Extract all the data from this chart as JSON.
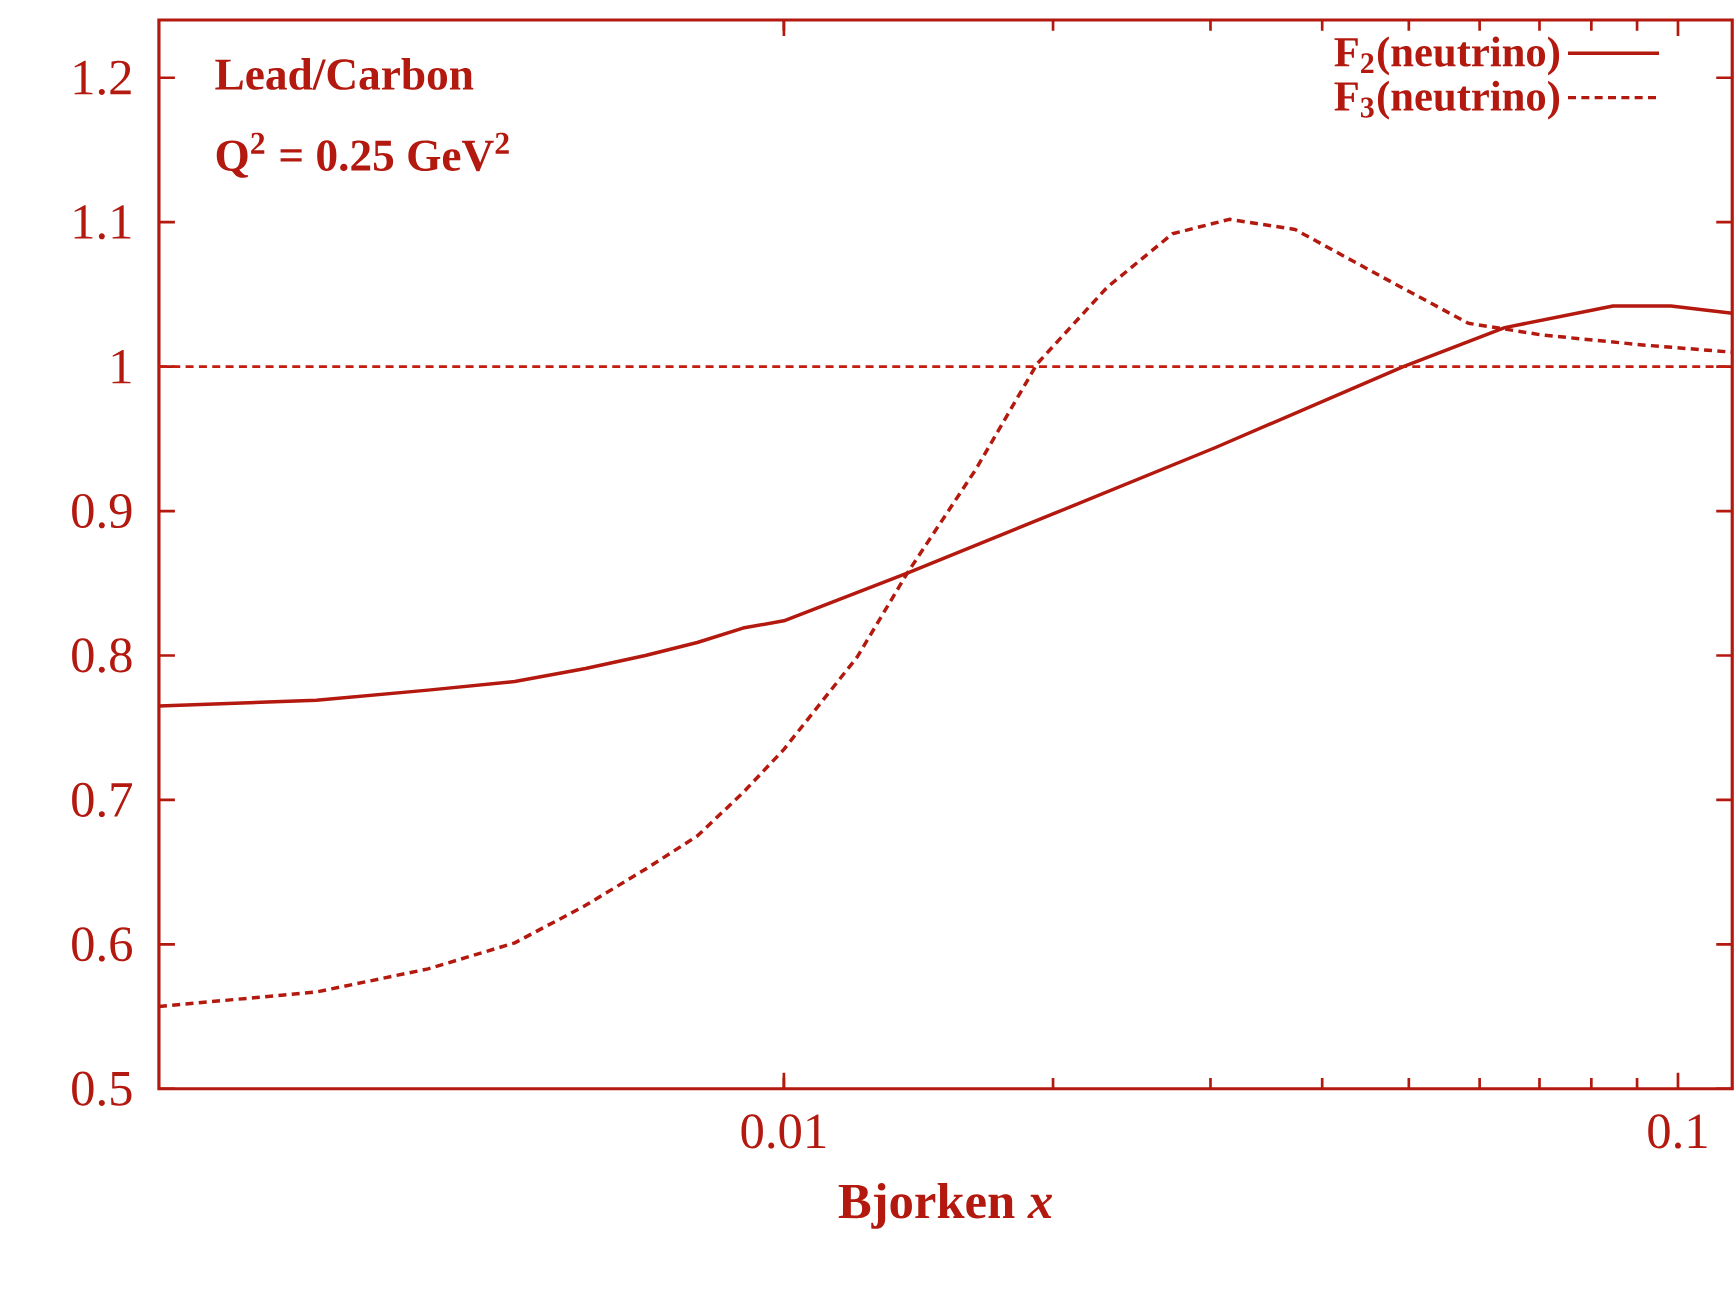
{
  "chart_data": {
    "type": "line",
    "xlabel": "Bjorken *x*",
    "log": "x",
    "xlim": [
      0.002,
      0.115
    ],
    "ylim": [
      0.5,
      1.24
    ],
    "xticks": [
      0.01,
      0.1
    ],
    "yticks": [
      0.5,
      0.6,
      0.7,
      0.8,
      0.9,
      1,
      1.1,
      1.2
    ],
    "grid": false,
    "legend": "top right",
    "marker": "none",
    "annotations": [
      "Lead/Carbon",
      "Q$^{2}$ = 0.25 GeV$^{2}$"
    ],
    "ref_lines": [
      {
        "axis": "y",
        "value": 1,
        "color": "#c41e10",
        "line_style": "dashed"
      }
    ],
    "series": [
      {
        "name": "F$_{2}$(neutrino)",
        "color": "#b3190f",
        "line_style": "solid",
        "x": [
          0.002,
          0.003,
          0.004,
          0.005,
          0.006,
          0.007,
          0.008,
          0.009,
          0.01,
          0.01374,
          0.02,
          0.0304,
          0.0493,
          0.064,
          0.0846,
          0.0982,
          0.115
        ],
        "values": [
          0.765,
          0.769,
          0.776,
          0.782,
          0.791,
          0.8,
          0.809,
          0.819,
          0.824,
          0.857,
          0.898,
          0.944,
          1.0,
          1.027,
          1.042,
          1.042,
          1.037
        ]
      },
      {
        "name": "F$_{3}$(neutrino)",
        "color": "#b3190f",
        "line_style": "dashed",
        "x": [
          0.002,
          0.003,
          0.004,
          0.005,
          0.006,
          0.007,
          0.008,
          0.009,
          0.01,
          0.01208,
          0.01374,
          0.0164,
          0.0192,
          0.023,
          0.0272,
          0.0315,
          0.0373,
          0.0467,
          0.0583,
          0.0703,
          0.0913,
          0.115
        ],
        "values": [
          0.557,
          0.567,
          0.583,
          0.601,
          0.627,
          0.652,
          0.675,
          0.705,
          0.735,
          0.799,
          0.857,
          0.929,
          1.002,
          1.055,
          1.092,
          1.102,
          1.095,
          1.062,
          1.03,
          1.022,
          1.015,
          1.01
        ]
      }
    ]
  }
}
